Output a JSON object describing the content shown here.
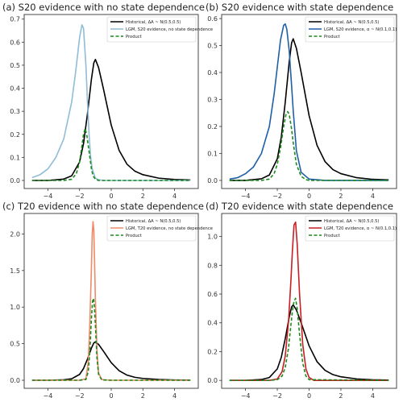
{
  "chart_data": [
    {
      "type": "line",
      "title": "(a) S20 evidence with no state dependence",
      "xlabel": "",
      "ylabel": "",
      "xlim": [
        -5.5,
        5.5
      ],
      "ylim": [
        -0.035,
        0.72
      ],
      "xticks": [
        -4,
        -2,
        0,
        2,
        4
      ],
      "yticks": [
        0.0,
        0.1,
        0.2,
        0.3,
        0.4,
        0.5,
        0.6,
        0.7
      ],
      "ytick_labels": [
        "0.0",
        "0.1",
        "0.2",
        "0.3",
        "0.4",
        "0.5",
        "0.6",
        "0.7"
      ],
      "legend_position": "upper-right",
      "grid": false,
      "series": [
        {
          "name": "Historical, ΔA ~ N(0.5,0.5)",
          "color": "#000000",
          "dash": "solid",
          "x": [
            -5,
            -4,
            -3,
            -2.5,
            -2,
            -1.75,
            -1.5,
            -1.25,
            -1.1,
            -1,
            -0.8,
            -0.5,
            0,
            0.5,
            1,
            1.5,
            2,
            3,
            4,
            5
          ],
          "y": [
            0,
            0,
            0.006,
            0.02,
            0.08,
            0.16,
            0.29,
            0.44,
            0.51,
            0.525,
            0.49,
            0.4,
            0.24,
            0.13,
            0.07,
            0.04,
            0.025,
            0.01,
            0.004,
            0.002
          ]
        },
        {
          "name": "LGM, S20 evidence, no state dependence",
          "color": "#8fbcd8",
          "dash": "solid",
          "x": [
            -5,
            -4.5,
            -4,
            -3.5,
            -3,
            -2.5,
            -2.25,
            -2,
            -1.85,
            -1.75,
            -1.6,
            -1.5,
            -1.4,
            -1.3,
            -1.2,
            -1,
            -0.8,
            -0.5,
            0,
            1,
            2,
            3,
            4,
            5
          ],
          "y": [
            0.012,
            0.025,
            0.05,
            0.1,
            0.18,
            0.34,
            0.47,
            0.62,
            0.675,
            0.66,
            0.5,
            0.34,
            0.2,
            0.1,
            0.05,
            0.01,
            0.003,
            0,
            0,
            0,
            0,
            0,
            0,
            0
          ]
        },
        {
          "name": "Product",
          "color": "#1a8a1a",
          "dash": "dashed",
          "x": [
            -5,
            -3,
            -2.5,
            -2.2,
            -2,
            -1.85,
            -1.75,
            -1.65,
            -1.55,
            -1.45,
            -1.35,
            -1.25,
            -1.15,
            -1,
            -0.8,
            0,
            5
          ],
          "y": [
            0,
            0,
            0.005,
            0.03,
            0.08,
            0.15,
            0.2,
            0.225,
            0.2,
            0.15,
            0.1,
            0.05,
            0.02,
            0.005,
            0,
            0,
            0
          ]
        }
      ]
    },
    {
      "type": "line",
      "title": "(b) S20 evidence with state dependence",
      "xlabel": "",
      "ylabel": "",
      "xlim": [
        -5.5,
        5.5
      ],
      "ylim": [
        -0.03,
        0.615
      ],
      "xticks": [
        -4,
        -2,
        0,
        2,
        4
      ],
      "yticks": [
        0.0,
        0.1,
        0.2,
        0.3,
        0.4,
        0.5,
        0.6
      ],
      "ytick_labels": [
        "0.0",
        "0.1",
        "0.2",
        "0.3",
        "0.4",
        "0.5",
        "0.6"
      ],
      "legend_position": "upper-right",
      "grid": false,
      "series": [
        {
          "name": "Historical, ΔA ~ N(0.5,0.5)",
          "color": "#000000",
          "dash": "solid",
          "x": [
            -5,
            -4,
            -3,
            -2.5,
            -2,
            -1.75,
            -1.5,
            -1.25,
            -1.1,
            -1,
            -0.8,
            -0.5,
            0,
            0.5,
            1,
            1.5,
            2,
            3,
            4,
            5
          ],
          "y": [
            0,
            0,
            0.006,
            0.02,
            0.08,
            0.16,
            0.29,
            0.44,
            0.51,
            0.525,
            0.49,
            0.4,
            0.24,
            0.13,
            0.07,
            0.04,
            0.025,
            0.01,
            0.004,
            0.002
          ]
        },
        {
          "name": "LGM, S20 evidence, α ~ N(0.1,0.1)",
          "color": "#1f5fa6",
          "dash": "solid",
          "x": [
            -5,
            -4.5,
            -4,
            -3.5,
            -3,
            -2.5,
            -2.2,
            -2,
            -1.8,
            -1.6,
            -1.5,
            -1.4,
            -1.25,
            -1.1,
            -1,
            -0.8,
            -0.5,
            0,
            1,
            2,
            5
          ],
          "y": [
            0.005,
            0.01,
            0.025,
            0.05,
            0.1,
            0.2,
            0.32,
            0.42,
            0.52,
            0.575,
            0.58,
            0.56,
            0.48,
            0.35,
            0.26,
            0.11,
            0.03,
            0.005,
            0,
            0,
            0
          ]
        },
        {
          "name": "Product",
          "color": "#1a8a1a",
          "dash": "dashed",
          "x": [
            -5,
            -3,
            -2.5,
            -2.2,
            -2,
            -1.8,
            -1.6,
            -1.45,
            -1.35,
            -1.25,
            -1.1,
            -1,
            -0.8,
            -0.5,
            -0.2,
            0,
            5
          ],
          "y": [
            0,
            0,
            0.005,
            0.025,
            0.06,
            0.12,
            0.2,
            0.245,
            0.255,
            0.245,
            0.19,
            0.14,
            0.06,
            0.015,
            0.003,
            0,
            0
          ]
        }
      ]
    },
    {
      "type": "line",
      "title": "(c) T20 evidence with no state dependence",
      "xlabel": "",
      "ylabel": "",
      "xlim": [
        -5.5,
        5.5
      ],
      "ylim": [
        -0.11,
        2.28
      ],
      "xticks": [
        -4,
        -2,
        0,
        2,
        4
      ],
      "yticks": [
        0.0,
        0.5,
        1.0,
        1.5,
        2.0
      ],
      "ytick_labels": [
        "0.0",
        "0.5",
        "1.0",
        "1.5",
        "2.0"
      ],
      "legend_position": "upper-right",
      "grid": false,
      "series": [
        {
          "name": "Historical, ΔA ~ N(0.5,0.5)",
          "color": "#000000",
          "dash": "solid",
          "x": [
            -5,
            -4,
            -3,
            -2.5,
            -2,
            -1.75,
            -1.5,
            -1.25,
            -1.1,
            -1,
            -0.8,
            -0.5,
            0,
            0.5,
            1,
            1.5,
            2,
            3,
            4,
            5
          ],
          "y": [
            0,
            0,
            0.006,
            0.02,
            0.08,
            0.16,
            0.29,
            0.44,
            0.51,
            0.525,
            0.49,
            0.4,
            0.24,
            0.13,
            0.07,
            0.04,
            0.025,
            0.01,
            0.004,
            0.002
          ]
        },
        {
          "name": "LGM, T20 evidence, no state dependence",
          "color": "#f08a6a",
          "dash": "solid",
          "x": [
            -5,
            -2,
            -1.6,
            -1.45,
            -1.35,
            -1.25,
            -1.2,
            -1.15,
            -1.1,
            -1.05,
            -1,
            -0.9,
            -0.8,
            -0.6,
            0,
            5
          ],
          "y": [
            0,
            0,
            0.02,
            0.25,
            0.8,
            1.55,
            2.0,
            2.17,
            2.05,
            1.6,
            1.1,
            0.4,
            0.1,
            0.01,
            0,
            0
          ]
        },
        {
          "name": "Product",
          "color": "#1a8a1a",
          "dash": "dashed",
          "x": [
            -5,
            -2,
            -1.6,
            -1.45,
            -1.35,
            -1.25,
            -1.18,
            -1.12,
            -1.06,
            -1,
            -0.9,
            -0.8,
            -0.6,
            0,
            5
          ],
          "y": [
            0,
            0,
            0.01,
            0.12,
            0.4,
            0.85,
            1.08,
            1.12,
            1.0,
            0.75,
            0.3,
            0.08,
            0.005,
            0,
            0
          ]
        }
      ]
    },
    {
      "type": "line",
      "title": "(d) T20 evidence with state dependence",
      "xlabel": "",
      "ylabel": "",
      "xlim": [
        -5.5,
        5.5
      ],
      "ylim": [
        -0.055,
        1.16
      ],
      "xticks": [
        -4,
        -2,
        0,
        2,
        4
      ],
      "yticks": [
        0.0,
        0.2,
        0.4,
        0.6,
        0.8,
        1.0
      ],
      "ytick_labels": [
        "0.0",
        "0.2",
        "0.4",
        "0.6",
        "0.8",
        "1.0"
      ],
      "legend_position": "upper-right",
      "grid": false,
      "series": [
        {
          "name": "Historical, ΔA ~ N(0.5,0.5)",
          "color": "#000000",
          "dash": "solid",
          "x": [
            -5,
            -4,
            -3,
            -2.5,
            -2,
            -1.75,
            -1.5,
            -1.25,
            -1.1,
            -1,
            -0.8,
            -0.5,
            0,
            0.5,
            1,
            1.5,
            2,
            3,
            4,
            5
          ],
          "y": [
            0,
            0,
            0.006,
            0.02,
            0.08,
            0.16,
            0.29,
            0.44,
            0.51,
            0.525,
            0.49,
            0.4,
            0.24,
            0.13,
            0.07,
            0.04,
            0.025,
            0.01,
            0.004,
            0.002
          ]
        },
        {
          "name": "LGM, T20 evidence, α ~ N(0.1,0.1)",
          "color": "#c81e24",
          "dash": "solid",
          "x": [
            -5,
            -2.5,
            -2,
            -1.7,
            -1.5,
            -1.3,
            -1.15,
            -1.05,
            -0.95,
            -0.85,
            -0.75,
            -0.6,
            -0.4,
            -0.2,
            0,
            0.3,
            5
          ],
          "y": [
            0,
            0,
            0.01,
            0.06,
            0.17,
            0.4,
            0.68,
            0.9,
            1.08,
            1.1,
            0.95,
            0.6,
            0.25,
            0.08,
            0.02,
            0,
            0
          ]
        },
        {
          "name": "Product",
          "color": "#1a8a1a",
          "dash": "dashed",
          "x": [
            -5,
            -2.5,
            -2,
            -1.7,
            -1.5,
            -1.3,
            -1.15,
            -1.05,
            -0.95,
            -0.85,
            -0.75,
            -0.6,
            -0.4,
            -0.2,
            0,
            5
          ],
          "y": [
            0,
            0,
            0.005,
            0.03,
            0.09,
            0.22,
            0.38,
            0.48,
            0.55,
            0.57,
            0.5,
            0.32,
            0.12,
            0.03,
            0.005,
            0
          ]
        }
      ]
    }
  ]
}
